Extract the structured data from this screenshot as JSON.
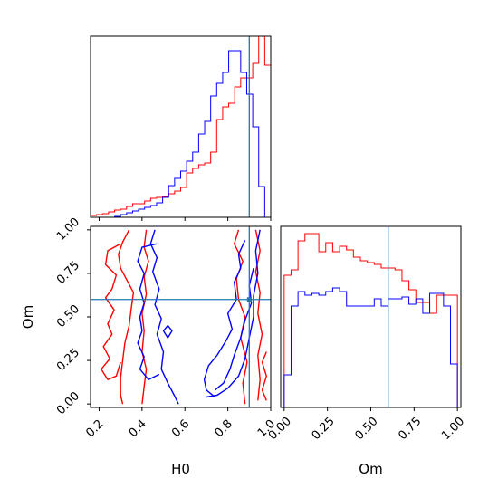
{
  "chart_data": {
    "type": "corner",
    "parameters": [
      "H0",
      "Om"
    ],
    "truth": {
      "H0": 0.9,
      "Om": 0.6
    },
    "colors": {
      "red": "#ff0000",
      "blue": "#0000ff",
      "truth": "#1f77b4"
    },
    "series": [
      {
        "color": "#ff0000",
        "label": "red"
      },
      {
        "color": "#0000ff",
        "label": "blue"
      }
    ],
    "panels": [
      {
        "kind": "hist1d",
        "param": "H0",
        "xlim": [
          0.16,
          1.0
        ],
        "ylim": [
          0,
          1.0
        ],
        "xticks": [
          0.2,
          0.4,
          0.6,
          0.8,
          1.0
        ],
        "xtick_labels": [],
        "bin_edges": [
          0.16,
          0.188,
          0.216,
          0.244,
          0.272,
          0.3,
          0.328,
          0.356,
          0.384,
          0.412,
          0.44,
          0.468,
          0.496,
          0.524,
          0.552,
          0.58,
          0.608,
          0.636,
          0.664,
          0.692,
          0.72,
          0.748,
          0.776,
          0.804,
          0.832,
          0.86,
          0.888,
          0.916,
          0.944,
          0.972,
          1.0
        ],
        "series": [
          {
            "color": "#ff0000",
            "values": [
              0.01,
              0.015,
              0.02,
              0.03,
              0.04,
              0.045,
              0.06,
              0.075,
              0.075,
              0.09,
              0.105,
              0.11,
              0.115,
              0.13,
              0.145,
              0.165,
              0.245,
              0.27,
              0.29,
              0.3,
              0.36,
              0.54,
              0.61,
              0.63,
              0.72,
              0.77,
              0.77,
              0.85,
              1.0,
              0.84
            ]
          },
          {
            "color": "#0000ff",
            "values": [
              0.0,
              0.0,
              0.0,
              0.0,
              0.005,
              0.015,
              0.025,
              0.035,
              0.045,
              0.055,
              0.065,
              0.08,
              0.11,
              0.175,
              0.215,
              0.255,
              0.31,
              0.36,
              0.46,
              0.53,
              0.67,
              0.74,
              0.8,
              0.92,
              0.92,
              0.8,
              0.68,
              0.5,
              0.17,
              0.0
            ]
          }
        ]
      },
      {
        "kind": "contour2d",
        "xparam": "H0",
        "yparam": "Om",
        "xlim": [
          0.16,
          1.0
        ],
        "ylim": [
          -0.02,
          1.02
        ],
        "xticks": [
          0.2,
          0.4,
          0.6,
          0.8,
          1.0
        ],
        "xtick_labels": [
          "0.2",
          "0.4",
          "0.6",
          "0.8",
          "1.0"
        ],
        "yticks": [
          0.0,
          0.25,
          0.5,
          0.75,
          1.0
        ],
        "ytick_labels": [
          "0.00",
          "0.25",
          "0.50",
          "0.75",
          "1.00"
        ],
        "xlabel": "H0",
        "ylabel": "Om",
        "contours": [
          {
            "color": "#ff0000",
            "points": [
              [
                0.34,
                1.0
              ],
              [
                0.31,
                0.93
              ],
              [
                0.29,
                0.86
              ],
              [
                0.3,
                0.78
              ],
              [
                0.33,
                0.71
              ],
              [
                0.36,
                0.64
              ],
              [
                0.35,
                0.55
              ],
              [
                0.34,
                0.45
              ],
              [
                0.32,
                0.35
              ],
              [
                0.31,
                0.25
              ],
              [
                0.3,
                0.15
              ],
              [
                0.3,
                0.05
              ],
              [
                0.31,
                0.0
              ]
            ]
          },
          {
            "color": "#ff0000",
            "points": [
              [
                0.42,
                1.0
              ],
              [
                0.41,
                0.9
              ],
              [
                0.43,
                0.82
              ],
              [
                0.41,
                0.73
              ],
              [
                0.42,
                0.63
              ],
              [
                0.4,
                0.52
              ],
              [
                0.41,
                0.42
              ],
              [
                0.4,
                0.3
              ],
              [
                0.42,
                0.2
              ],
              [
                0.41,
                0.1
              ],
              [
                0.4,
                0.0
              ]
            ]
          },
          {
            "color": "#ff0000",
            "points": [
              [
                0.3,
                0.92
              ],
              [
                0.24,
                0.88
              ],
              [
                0.23,
                0.8
              ],
              [
                0.28,
                0.74
              ],
              [
                0.26,
                0.66
              ],
              [
                0.23,
                0.61
              ],
              [
                0.27,
                0.54
              ],
              [
                0.24,
                0.46
              ],
              [
                0.26,
                0.4
              ],
              [
                0.22,
                0.33
              ],
              [
                0.25,
                0.26
              ],
              [
                0.21,
                0.2
              ],
              [
                0.24,
                0.14
              ],
              [
                0.28,
                0.16
              ],
              [
                0.3,
                0.24
              ]
            ]
          },
          {
            "color": "#ff0000",
            "points": [
              [
                0.85,
                1.0
              ],
              [
                0.83,
                0.92
              ],
              [
                0.87,
                0.82
              ],
              [
                0.84,
                0.72
              ],
              [
                0.85,
                0.6
              ],
              [
                0.88,
                0.5
              ],
              [
                0.86,
                0.38
              ],
              [
                0.89,
                0.24
              ],
              [
                0.87,
                0.12
              ],
              [
                0.88,
                0.0
              ]
            ]
          },
          {
            "color": "#ff0000",
            "points": [
              [
                0.93,
                1.0
              ],
              [
                0.95,
                0.88
              ],
              [
                0.93,
                0.76
              ],
              [
                0.95,
                0.64
              ],
              [
                0.94,
                0.52
              ],
              [
                0.96,
                0.4
              ],
              [
                0.94,
                0.28
              ],
              [
                0.95,
                0.14
              ],
              [
                0.94,
                0.02
              ]
            ]
          },
          {
            "color": "#ff0000",
            "points": [
              [
                0.98,
                0.3
              ],
              [
                0.96,
                0.24
              ],
              [
                0.98,
                0.16
              ],
              [
                0.96,
                0.08
              ],
              [
                0.98,
                0.02
              ]
            ]
          },
          {
            "color": "#0000ff",
            "points": [
              [
                0.46,
                1.0
              ],
              [
                0.44,
                0.92
              ],
              [
                0.47,
                0.84
              ],
              [
                0.45,
                0.76
              ],
              [
                0.48,
                0.66
              ],
              [
                0.46,
                0.57
              ],
              [
                0.49,
                0.49
              ],
              [
                0.47,
                0.4
              ],
              [
                0.5,
                0.3
              ],
              [
                0.49,
                0.2
              ],
              [
                0.52,
                0.12
              ],
              [
                0.55,
                0.05
              ],
              [
                0.57,
                0.0
              ]
            ]
          },
          {
            "color": "#0000ff",
            "points": [
              [
                0.47,
                0.92
              ],
              [
                0.4,
                0.9
              ],
              [
                0.38,
                0.82
              ],
              [
                0.41,
                0.75
              ],
              [
                0.39,
                0.66
              ],
              [
                0.41,
                0.58
              ],
              [
                0.39,
                0.5
              ],
              [
                0.4,
                0.42
              ],
              [
                0.38,
                0.35
              ],
              [
                0.41,
                0.27
              ],
              [
                0.39,
                0.2
              ],
              [
                0.43,
                0.14
              ],
              [
                0.48,
                0.17
              ]
            ]
          },
          {
            "color": "#0000ff",
            "points": [
              [
                0.52,
                0.45
              ],
              [
                0.54,
                0.42
              ],
              [
                0.52,
                0.38
              ],
              [
                0.5,
                0.42
              ],
              [
                0.52,
                0.45
              ]
            ]
          },
          {
            "color": "#0000ff",
            "points": [
              [
                0.95,
                1.0
              ],
              [
                0.93,
                0.88
              ],
              [
                0.94,
                0.75
              ],
              [
                0.92,
                0.62
              ],
              [
                0.92,
                0.5
              ],
              [
                0.9,
                0.38
              ],
              [
                0.88,
                0.26
              ],
              [
                0.85,
                0.16
              ],
              [
                0.8,
                0.09
              ],
              [
                0.75,
                0.05
              ],
              [
                0.7,
                0.04
              ]
            ]
          },
          {
            "color": "#0000ff",
            "points": [
              [
                0.88,
                0.94
              ],
              [
                0.85,
                0.86
              ],
              [
                0.86,
                0.78
              ],
              [
                0.83,
                0.7
              ],
              [
                0.84,
                0.6
              ],
              [
                0.8,
                0.52
              ],
              [
                0.82,
                0.43
              ],
              [
                0.79,
                0.36
              ],
              [
                0.75,
                0.28
              ],
              [
                0.71,
                0.22
              ],
              [
                0.69,
                0.14
              ],
              [
                0.7,
                0.08
              ],
              [
                0.74,
                0.04
              ]
            ]
          },
          {
            "color": "#0000ff",
            "points": [
              [
                0.92,
                0.78
              ],
              [
                0.9,
                0.68
              ],
              [
                0.91,
                0.58
              ],
              [
                0.88,
                0.48
              ],
              [
                0.86,
                0.38
              ],
              [
                0.83,
                0.28
              ],
              [
                0.81,
                0.2
              ],
              [
                0.78,
                0.12
              ],
              [
                0.74,
                0.08
              ]
            ]
          }
        ]
      },
      {
        "kind": "hist1d",
        "param": "Om",
        "xlim": [
          -0.02,
          1.02
        ],
        "ylim": [
          0,
          1.0
        ],
        "xticks": [
          0.0,
          0.25,
          0.5,
          0.75,
          1.0
        ],
        "xtick_labels": [
          "0.00",
          "0.25",
          "0.50",
          "0.75",
          "1.00"
        ],
        "xlabel": "Om",
        "bin_edges": [
          0.0,
          0.04,
          0.08,
          0.12,
          0.16,
          0.2,
          0.24,
          0.28,
          0.32,
          0.36,
          0.4,
          0.44,
          0.48,
          0.52,
          0.56,
          0.6,
          0.64,
          0.68,
          0.72,
          0.76,
          0.8,
          0.84,
          0.88,
          0.92,
          0.96,
          1.0
        ],
        "series": [
          {
            "color": "#ff0000",
            "values": [
              0.73,
              0.76,
              0.92,
              0.96,
              0.96,
              0.86,
              0.91,
              0.86,
              0.89,
              0.87,
              0.83,
              0.81,
              0.8,
              0.79,
              0.77,
              0.77,
              0.76,
              0.7,
              0.65,
              0.58,
              0.58,
              0.52,
              0.62,
              0.62,
              0.62
            ]
          },
          {
            "color": "#0000ff",
            "values": [
              0.18,
              0.56,
              0.64,
              0.62,
              0.63,
              0.62,
              0.64,
              0.66,
              0.64,
              0.56,
              0.56,
              0.56,
              0.56,
              0.6,
              0.56,
              0.6,
              0.6,
              0.61,
              0.57,
              0.6,
              0.52,
              0.63,
              0.63,
              0.56,
              0.24
            ]
          }
        ]
      }
    ]
  }
}
